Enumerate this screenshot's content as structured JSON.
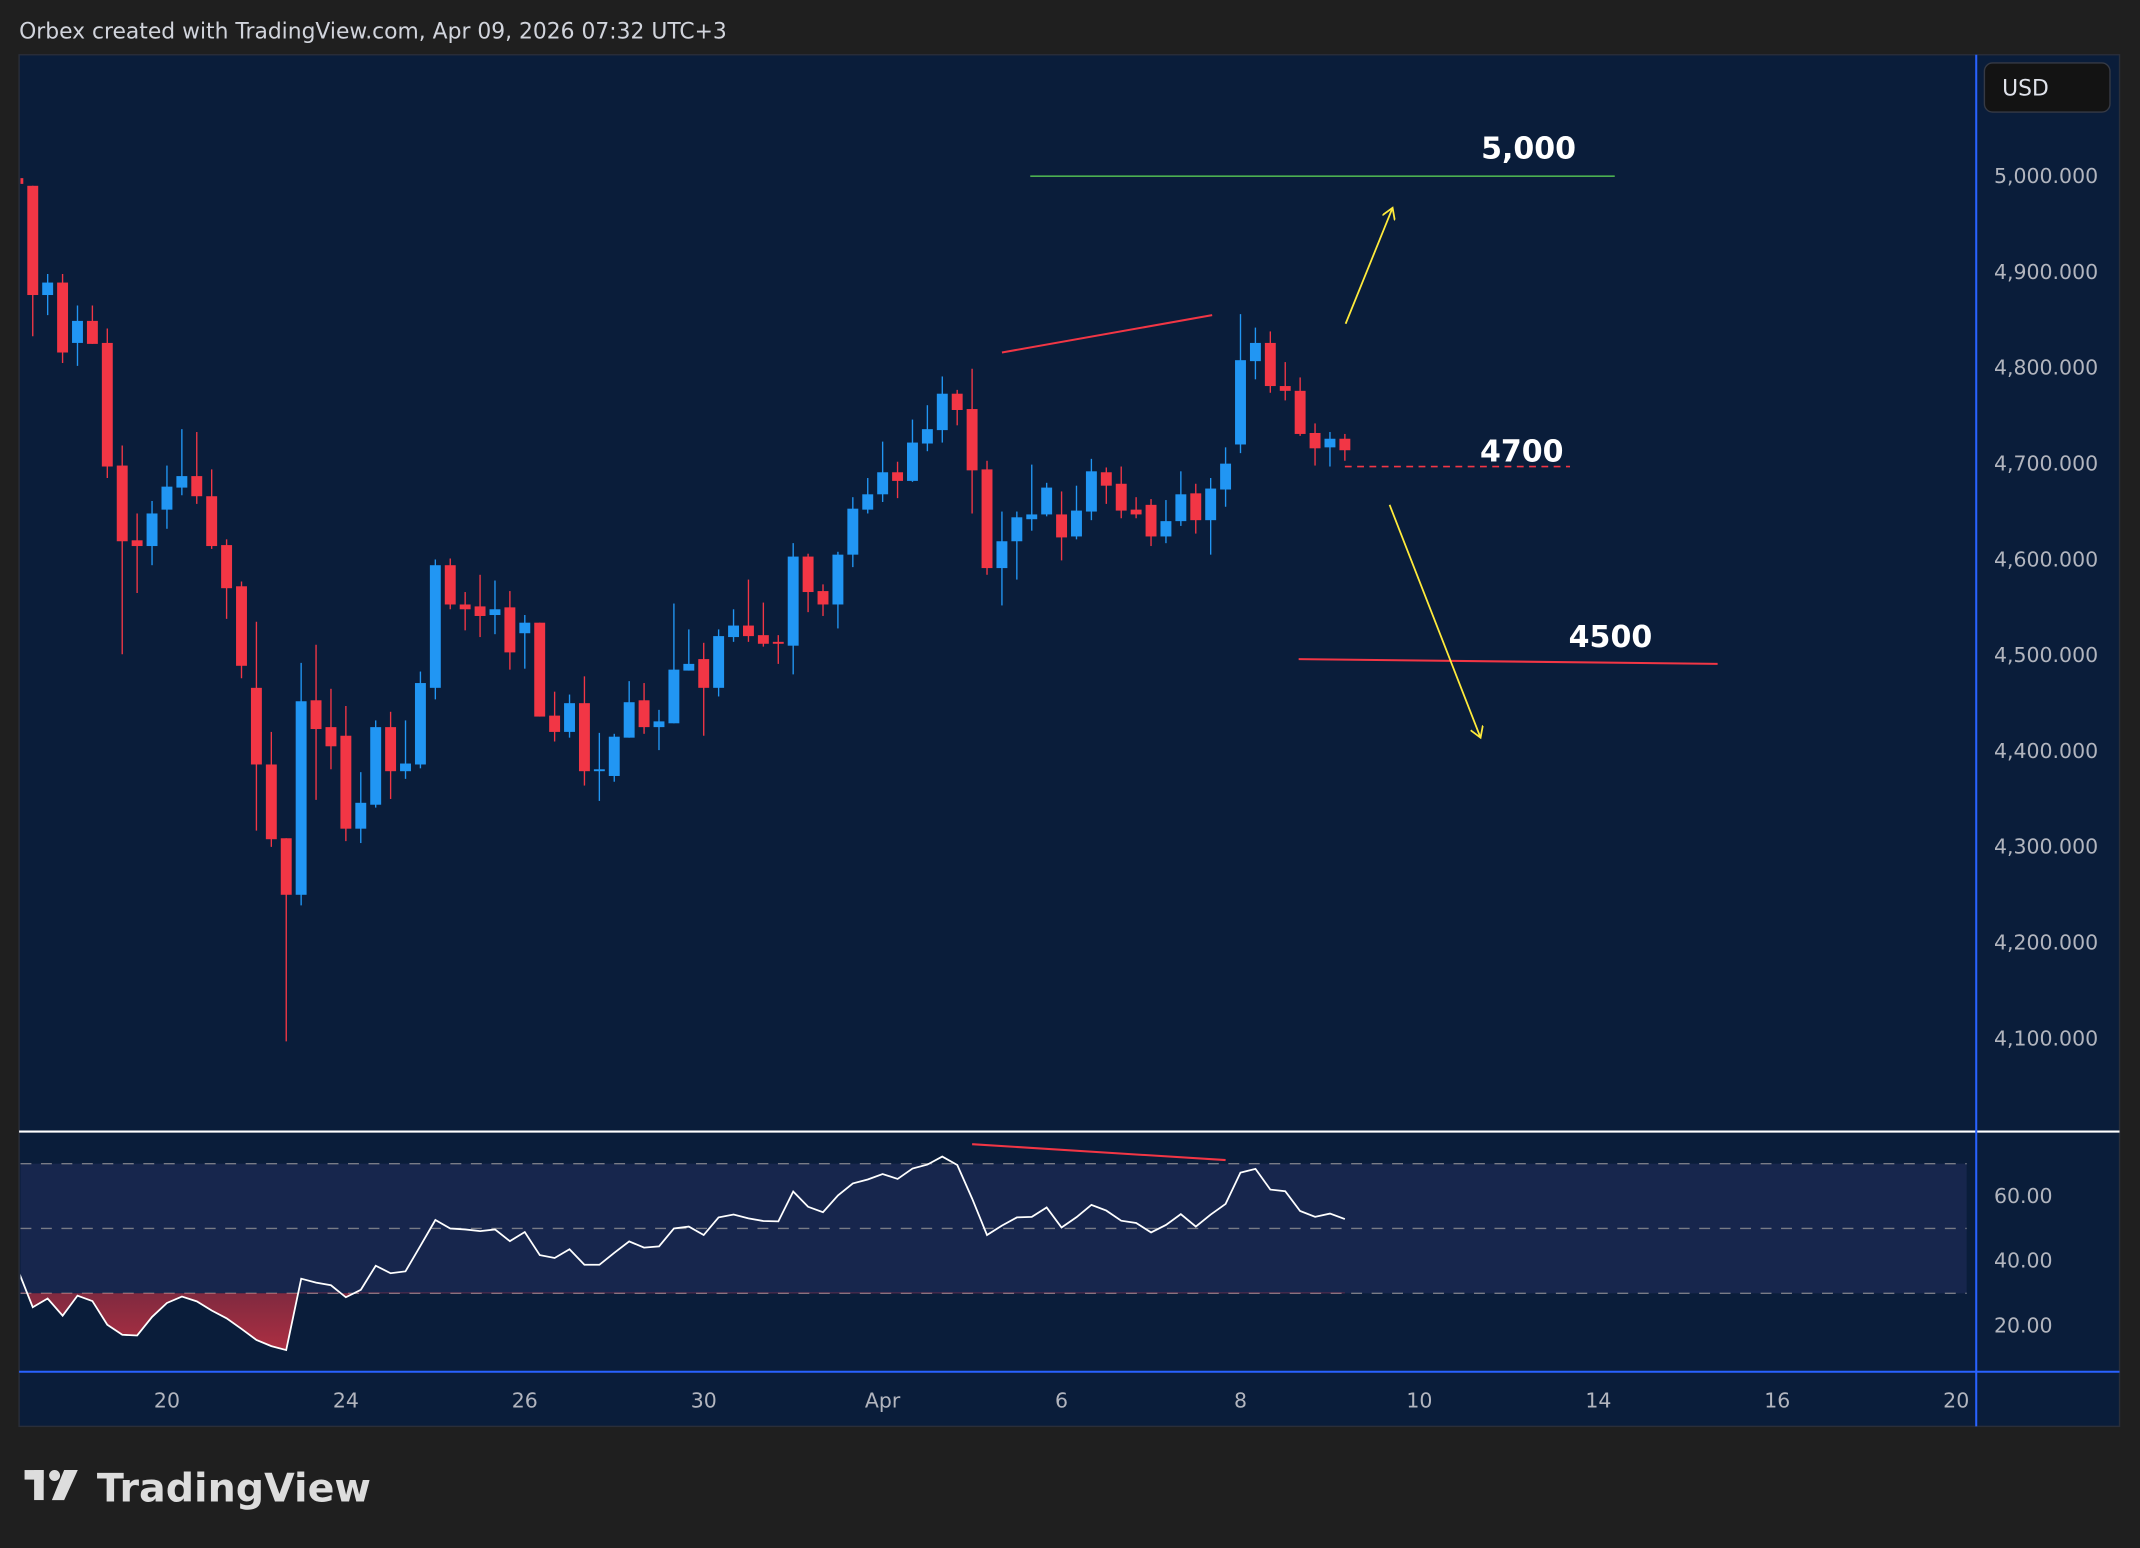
{
  "header": {
    "text": "Orbex created with TradingView.com, Apr 09, 2026 07:32 UTC+3"
  },
  "currency_button": {
    "label": "USD"
  },
  "logo": {
    "text": "TradingView"
  },
  "colors": {
    "up": "#2196f3",
    "down": "#f23645",
    "background": "#0a1d3a",
    "axis_line": "#2962ff",
    "rsi_line": "#ffffff",
    "rsi_band": "#17264d",
    "target_line": "#4caf50",
    "support_line": "#f23645",
    "arrow": "#ffeb3b"
  },
  "chart_data": [
    {
      "type": "candlestick",
      "title": "",
      "y_axis": {
        "range": [
          4004,
          5127
        ],
        "ticks": [
          4100,
          4200,
          4300,
          4400,
          4500,
          4600,
          4700,
          4800,
          4900,
          5000
        ],
        "tick_labels": [
          "4,100.000",
          "4,200.000",
          "4,300.000",
          "4,400.000",
          "4,500.000",
          "4,600.000",
          "4,700.000",
          "4,800.000",
          "4,900.000",
          "5,000.000"
        ]
      },
      "x_axis": {
        "ticks": [
          {
            "label": "20",
            "bar": 9
          },
          {
            "label": "24",
            "bar": 21
          },
          {
            "label": "26",
            "bar": 33
          },
          {
            "label": "30",
            "bar": 45
          },
          {
            "label": "Apr",
            "bar": 57
          },
          {
            "label": "6",
            "bar": 69
          },
          {
            "label": "8",
            "bar": 81
          },
          {
            "label": "10",
            "bar": 93
          },
          {
            "label": "14",
            "bar": 105
          },
          {
            "label": "16",
            "bar": 117
          },
          {
            "label": "20",
            "bar": 129
          }
        ]
      },
      "ohlc": [
        [
          4998,
          5002,
          4988,
          4992
        ],
        [
          4990,
          4990,
          4833,
          4876
        ],
        [
          4876,
          4898,
          4855,
          4889
        ],
        [
          4889,
          4898,
          4805,
          4816
        ],
        [
          4826,
          4865,
          4802,
          4849
        ],
        [
          4849,
          4865,
          4825,
          4825
        ],
        [
          4826,
          4841,
          4685,
          4697
        ],
        [
          4698,
          4719,
          4501,
          4619
        ],
        [
          4620,
          4648,
          4565,
          4614
        ],
        [
          4614,
          4661,
          4594,
          4648
        ],
        [
          4652,
          4698,
          4632,
          4676
        ],
        [
          4675,
          4736,
          4667,
          4687
        ],
        [
          4687,
          4733,
          4658,
          4666
        ],
        [
          4666,
          4694,
          4611,
          4614
        ],
        [
          4615,
          4621,
          4538,
          4570
        ],
        [
          4572,
          4577,
          4476,
          4489
        ],
        [
          4466,
          4535,
          4317,
          4386
        ],
        [
          4386,
          4420,
          4300,
          4308
        ],
        [
          4309,
          4309,
          4097,
          4250
        ],
        [
          4250,
          4492,
          4239,
          4452
        ],
        [
          4453,
          4511,
          4349,
          4423
        ],
        [
          4425,
          4465,
          4381,
          4405
        ],
        [
          4416,
          4447,
          4306,
          4319
        ],
        [
          4319,
          4378,
          4304,
          4346
        ],
        [
          4344,
          4432,
          4341,
          4425
        ],
        [
          4425,
          4441,
          4350,
          4379
        ],
        [
          4379,
          4432,
          4371,
          4387
        ],
        [
          4386,
          4483,
          4382,
          4471
        ],
        [
          4466,
          4600,
          4454,
          4594
        ],
        [
          4594,
          4601,
          4548,
          4553
        ],
        [
          4553,
          4566,
          4526,
          4548
        ],
        [
          4551,
          4584,
          4519,
          4541
        ],
        [
          4542,
          4578,
          4522,
          4548
        ],
        [
          4550,
          4567,
          4485,
          4503
        ],
        [
          4523,
          4542,
          4486,
          4534
        ],
        [
          4534,
          4534,
          4436,
          4436
        ],
        [
          4437,
          4462,
          4410,
          4420
        ],
        [
          4420,
          4459,
          4414,
          4450
        ],
        [
          4450,
          4478,
          4364,
          4379
        ],
        [
          4379,
          4419,
          4348,
          4381
        ],
        [
          4374,
          4418,
          4368,
          4415
        ],
        [
          4414,
          4473,
          4414,
          4451
        ],
        [
          4453,
          4471,
          4418,
          4425
        ],
        [
          4425,
          4443,
          4401,
          4431
        ],
        [
          4429,
          4554,
          4429,
          4485
        ],
        [
          4484,
          4527,
          4484,
          4491
        ],
        [
          4496,
          4513,
          4416,
          4466
        ],
        [
          4466,
          4527,
          4457,
          4520
        ],
        [
          4519,
          4548,
          4514,
          4531
        ],
        [
          4531,
          4579,
          4514,
          4520
        ],
        [
          4521,
          4555,
          4509,
          4512
        ],
        [
          4514,
          4521,
          4491,
          4512
        ],
        [
          4510,
          4617,
          4480,
          4603
        ],
        [
          4603,
          4606,
          4545,
          4566
        ],
        [
          4567,
          4574,
          4541,
          4553
        ],
        [
          4553,
          4608,
          4528,
          4605
        ],
        [
          4605,
          4665,
          4592,
          4653
        ],
        [
          4652,
          4685,
          4648,
          4668
        ],
        [
          4668,
          4723,
          4660,
          4691
        ],
        [
          4691,
          4702,
          4664,
          4682
        ],
        [
          4682,
          4746,
          4681,
          4722
        ],
        [
          4721,
          4761,
          4713,
          4736
        ],
        [
          4735,
          4791,
          4722,
          4773
        ],
        [
          4773,
          4777,
          4740,
          4756
        ],
        [
          4757,
          4799,
          4648,
          4693
        ],
        [
          4694,
          4703,
          4584,
          4591
        ],
        [
          4591,
          4650,
          4552,
          4619
        ],
        [
          4619,
          4650,
          4579,
          4644
        ],
        [
          4642,
          4699,
          4630,
          4647
        ],
        [
          4647,
          4680,
          4645,
          4675
        ],
        [
          4647,
          4671,
          4599,
          4623
        ],
        [
          4624,
          4677,
          4621,
          4651
        ],
        [
          4650,
          4705,
          4641,
          4692
        ],
        [
          4691,
          4696,
          4658,
          4677
        ],
        [
          4679,
          4697,
          4643,
          4651
        ],
        [
          4652,
          4665,
          4643,
          4647
        ],
        [
          4657,
          4663,
          4614,
          4624
        ],
        [
          4624,
          4662,
          4617,
          4640
        ],
        [
          4640,
          4692,
          4635,
          4668
        ],
        [
          4669,
          4679,
          4627,
          4641
        ],
        [
          4641,
          4685,
          4605,
          4674
        ],
        [
          4673,
          4717,
          4655,
          4700
        ],
        [
          4720,
          4856,
          4711,
          4808
        ],
        [
          4807,
          4842,
          4788,
          4826
        ],
        [
          4826,
          4838,
          4774,
          4781
        ],
        [
          4781,
          4806,
          4766,
          4776
        ],
        [
          4776,
          4790,
          4729,
          4731
        ],
        [
          4732,
          4742,
          4698,
          4716
        ],
        [
          4717,
          4733,
          4697,
          4726
        ],
        [
          4726,
          4731,
          4703,
          4714
        ]
      ],
      "annotations": [
        {
          "kind": "hline",
          "label": "5,000",
          "price": 5000,
          "from_bar": 66.9,
          "to_bar": 106.1,
          "color": "#4caf50"
        },
        {
          "kind": "dashed",
          "label": "4700",
          "price": 4697,
          "from_bar": 88,
          "to_bar": 103.1,
          "color": "#f23645"
        },
        {
          "kind": "line",
          "label": "4500",
          "from": [
            84.9,
            4496
          ],
          "to": [
            113,
            4491
          ],
          "color": "#f23645"
        },
        {
          "kind": "trend",
          "from": [
            65,
            4816
          ],
          "to": [
            79.1,
            4855
          ],
          "color": "#f23645"
        },
        {
          "kind": "arrow",
          "from": [
            88.05,
            4846
          ],
          "to": [
            91.2,
            4967
          ],
          "color": "#ffeb3b"
        },
        {
          "kind": "arrow",
          "from": [
            91,
            4657
          ],
          "to": [
            97.1,
            4414
          ],
          "color": "#ffeb3b"
        }
      ]
    },
    {
      "type": "line",
      "title": "",
      "y_axis": {
        "ticks": [
          20,
          40,
          60
        ],
        "tick_labels": [
          "20.00",
          "40.00",
          "60.00"
        ],
        "levels": [
          30,
          50,
          70
        ]
      },
      "values": [
        37.3,
        25.7,
        28.4,
        23.1,
        29.3,
        27.6,
        20.3,
        17.2,
        17.0,
        22.7,
        27.0,
        29.0,
        27.5,
        24.7,
        22.3,
        19.0,
        15.6,
        13.7,
        12.5,
        34.5,
        33.3,
        32.5,
        28.8,
        31.1,
        38.5,
        36.2,
        36.8,
        44.7,
        52.6,
        50.0,
        49.7,
        49.2,
        49.7,
        46.1,
        48.9,
        41.8,
        40.9,
        43.6,
        38.8,
        38.8,
        42.5,
        46.0,
        44.1,
        44.5,
        50.0,
        50.6,
        48.0,
        53.4,
        54.3,
        53.1,
        52.3,
        52.2,
        61.4,
        56.7,
        55.0,
        60.2,
        63.9,
        65.1,
        66.8,
        65.3,
        68.5,
        69.7,
        72.2,
        69.6,
        59.2,
        48.0,
        50.9,
        53.4,
        53.6,
        56.5,
        50.3,
        53.5,
        57.3,
        55.5,
        52.4,
        51.7,
        48.8,
        51.1,
        54.4,
        50.6,
        54.3,
        57.6,
        67.2,
        68.4,
        62.0,
        61.5,
        55.4,
        53.6,
        54.6,
        52.9
      ],
      "annotations": [
        {
          "kind": "trend",
          "from": [
            63,
            76.0
          ],
          "to": [
            80,
            71.1
          ],
          "color": "#f23645"
        }
      ]
    }
  ]
}
